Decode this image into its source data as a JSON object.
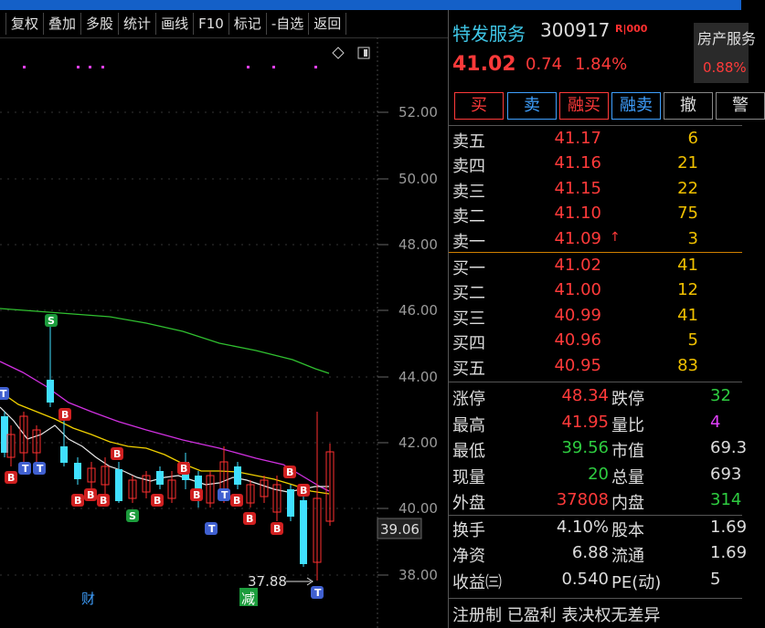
{
  "toolbar": {
    "items": [
      "",
      "复权",
      "叠加",
      "多股",
      "统计",
      "画线",
      "F10",
      "标记",
      "-自选",
      "返回"
    ]
  },
  "chart": {
    "price_labels": [
      "52.00",
      "50.00",
      "48.00",
      "46.00",
      "44.00",
      "42.00",
      "40.00",
      "38.00"
    ],
    "current_price_label": "39.06",
    "low_annotation": "37.88",
    "event_labels": [
      "财",
      "减"
    ],
    "colors": {
      "ma_white": "#e8e8e8",
      "ma_yellow": "#f0d000",
      "ma_magenta": "#d030e0",
      "ma_green": "#30c030",
      "up": "#ff3030",
      "down": "#40e0ff"
    }
  },
  "quote": {
    "name": "特发服务",
    "code": "300917",
    "tag": "R|000",
    "price": "41.02",
    "change": "0.74",
    "change_pct": "1.84%",
    "sector_name": "房产服务",
    "sector_pct": "0.88%"
  },
  "actions": {
    "buy": "买",
    "sell": "卖",
    "margin_buy": "融买",
    "margin_sell": "融卖",
    "cancel": "撤",
    "alert": "警"
  },
  "order_book": {
    "asks": [
      {
        "label": "卖五",
        "price": "41.17",
        "vol": "6"
      },
      {
        "label": "卖四",
        "price": "41.16",
        "vol": "21"
      },
      {
        "label": "卖三",
        "price": "41.15",
        "vol": "22"
      },
      {
        "label": "卖二",
        "price": "41.10",
        "vol": "75"
      },
      {
        "label": "卖一",
        "price": "41.09",
        "vol": "3"
      }
    ],
    "bids": [
      {
        "label": "买一",
        "price": "41.02",
        "vol": "41"
      },
      {
        "label": "买二",
        "price": "41.00",
        "vol": "12"
      },
      {
        "label": "买三",
        "price": "40.99",
        "vol": "41"
      },
      {
        "label": "买四",
        "price": "40.96",
        "vol": "5"
      },
      {
        "label": "买五",
        "price": "40.95",
        "vol": "83"
      }
    ]
  },
  "stats": [
    {
      "l1": "涨停",
      "v1": "48.34",
      "l2": "跌停",
      "v2": "32"
    },
    {
      "l1": "最高",
      "v1": "41.95",
      "l2": "量比",
      "v2": "4"
    },
    {
      "l1": "最低",
      "v1": "39.56",
      "l2": "市值",
      "v2": "69.3"
    },
    {
      "l1": "现量",
      "v1": "20",
      "l2": "总量",
      "v2": "693"
    },
    {
      "l1": "外盘",
      "v1": "37808",
      "l2": "内盘",
      "v2": "314"
    },
    {
      "l1": "换手",
      "v1": "4.10%",
      "l2": "股本",
      "v2": "1.69"
    },
    {
      "l1": "净资",
      "v1": "6.88",
      "l2": "流通",
      "v2": "1.69"
    },
    {
      "l1": "收益㈢",
      "v1": "0.540",
      "l2": "PE(动)",
      "v2": "5"
    }
  ],
  "footer": "注册制 已盈利 表决权无差异"
}
